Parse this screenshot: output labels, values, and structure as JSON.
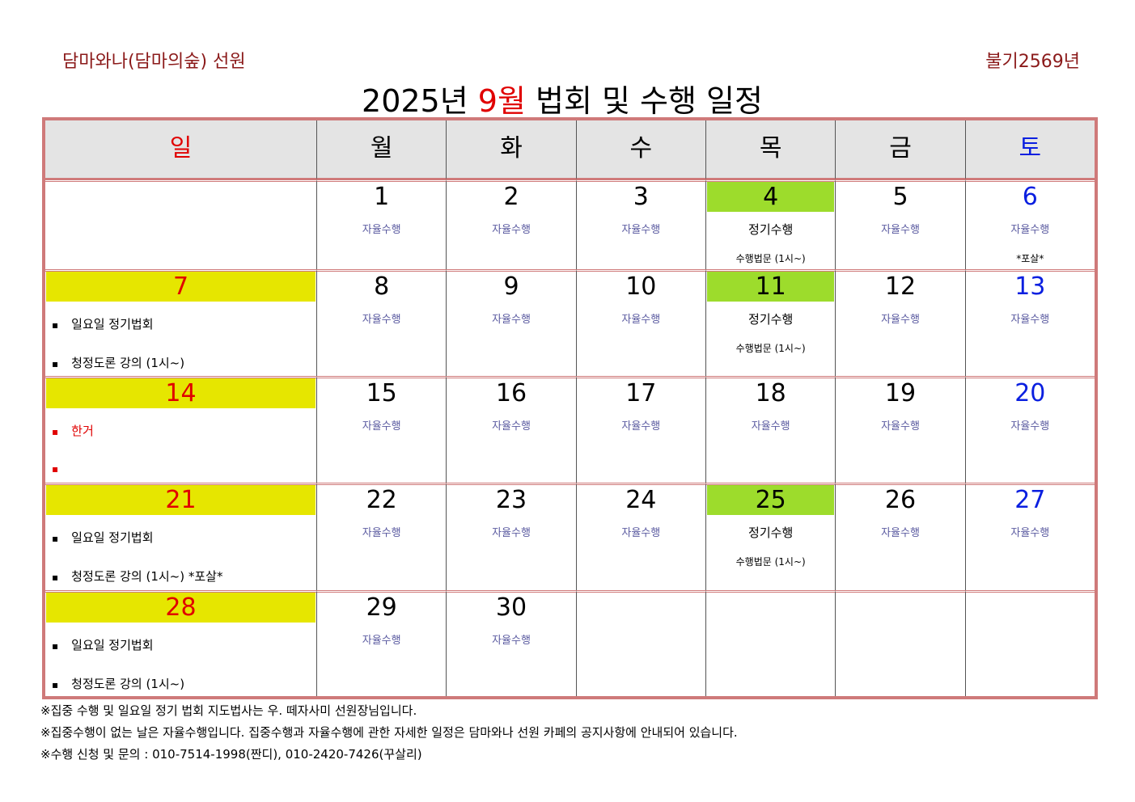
{
  "header": {
    "left": "담마와나(담마의숲) 선원",
    "right": "불기2569년",
    "title_pre": "2025년",
    "title_month": "9월",
    "title_post": "법회 및 수행 일정"
  },
  "weekdays": [
    "일",
    "월",
    "화",
    "수",
    "목",
    "금",
    "토"
  ],
  "weeks": [
    [
      null,
      {
        "day": "1",
        "activity": "자율수행"
      },
      {
        "day": "2",
        "activity": "자율수행"
      },
      {
        "day": "3",
        "activity": "자율수행"
      },
      {
        "day": "4",
        "activity": "정기수행",
        "note": "수행법문 (1시~)",
        "highlight": "#9ddc2c"
      },
      {
        "day": "5",
        "activity": "자율수행"
      },
      {
        "day": "6",
        "activity": "자율수행",
        "note": "*포살*"
      }
    ],
    [
      {
        "day": "7",
        "highlight": "#e6e600",
        "items": [
          "일요일 정기법회",
          "청정도론 강의 (1시~)"
        ]
      },
      {
        "day": "8",
        "activity": "자율수행"
      },
      {
        "day": "9",
        "activity": "자율수행"
      },
      {
        "day": "10",
        "activity": "자율수행"
      },
      {
        "day": "11",
        "activity": "정기수행",
        "note": "수행법문 (1시~)",
        "highlight": "#9ddc2c"
      },
      {
        "day": "12",
        "activity": "자율수행"
      },
      {
        "day": "13",
        "activity": "자율수행"
      }
    ],
    [
      {
        "day": "14",
        "highlight": "#e6e600",
        "items": [
          "한거",
          null
        ],
        "item_color": "#e00000"
      },
      {
        "day": "15",
        "activity": "자율수행"
      },
      {
        "day": "16",
        "activity": "자율수행"
      },
      {
        "day": "17",
        "activity": "자율수행"
      },
      {
        "day": "18",
        "activity": "자율수행"
      },
      {
        "day": "19",
        "activity": "자율수행"
      },
      {
        "day": "20",
        "activity": "자율수행"
      }
    ],
    [
      {
        "day": "21",
        "highlight": "#e6e600",
        "items": [
          "일요일 정기법회",
          "청정도론 강의 (1시~) *포살*"
        ]
      },
      {
        "day": "22",
        "activity": "자율수행"
      },
      {
        "day": "23",
        "activity": "자율수행"
      },
      {
        "day": "24",
        "activity": "자율수행"
      },
      {
        "day": "25",
        "activity": "정기수행",
        "note": "수행법문 (1시~)",
        "highlight": "#9ddc2c"
      },
      {
        "day": "26",
        "activity": "자율수행"
      },
      {
        "day": "27",
        "activity": "자율수행"
      }
    ],
    [
      {
        "day": "28",
        "highlight": "#e6e600",
        "items": [
          "일요일 정기법회",
          "청정도론 강의 (1시~)"
        ]
      },
      {
        "day": "29",
        "activity": "자율수행"
      },
      {
        "day": "30",
        "activity": "자율수행"
      },
      null,
      null,
      null,
      null
    ]
  ],
  "notes": [
    "※집중 수행 및 일요일 정기 법회 지도법사는 우. 떼자사미 선원장님입니다.",
    "※집중수행이 없는 날은 자율수행입니다. 집중수행과 자율수행에 관한 자세한 일정은 담마와나 선원 카페의 공지사항에 안내되어 있습니다.",
    "※수행 신청 및 문의 : 010-7514-1998(짠디), 010-2420-7426(꾸살리)"
  ]
}
